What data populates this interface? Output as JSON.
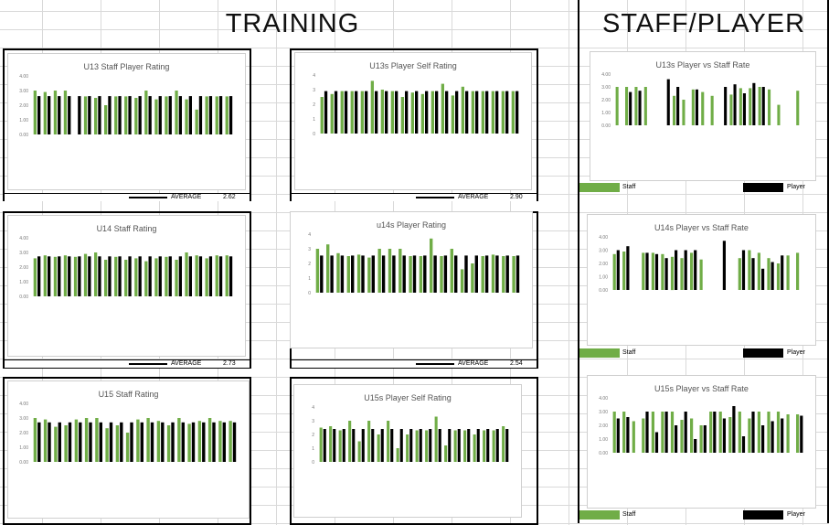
{
  "headings": {
    "training": "TRAINING",
    "staff_player": "STAFF/PLAYER"
  },
  "colors": {
    "green": "#70ad47",
    "black": "#000000"
  },
  "footers": [
    {
      "label": "AVERAGE",
      "value": "2.62"
    },
    {
      "label": "AVERAGE",
      "value": "2.90"
    },
    {
      "label": "AVERAGE",
      "value": "2.73"
    },
    {
      "label": "AVERAGE",
      "value": "2.54"
    }
  ],
  "legends": [
    {
      "staff": "Staff",
      "player": "Player"
    },
    {
      "staff": "Staff",
      "player": "Player"
    },
    {
      "staff": "Staff",
      "player": "Player"
    }
  ],
  "chart_data": [
    {
      "type": "bar",
      "title": "U13 Staff Player Rating",
      "ylim": [
        0,
        4
      ],
      "yticks": [
        "4.00",
        "3.00",
        "2.00",
        "1.00",
        "0.00"
      ],
      "series": [
        {
          "values": [
            3.0,
            2.9,
            3.0,
            3.0,
            0,
            2.6,
            2.5,
            2.0,
            2.6,
            2.6,
            2.5,
            3.0,
            2.4,
            2.6,
            3.0,
            2.4,
            1.7,
            2.6,
            2.6,
            2.6
          ]
        },
        {
          "values": [
            2.62,
            2.62,
            2.62,
            2.62,
            2.62,
            2.62,
            2.62,
            2.62,
            2.62,
            2.62,
            2.62,
            2.62,
            2.62,
            2.62,
            2.62,
            2.62,
            2.62,
            2.62,
            2.62,
            2.62
          ]
        }
      ]
    },
    {
      "type": "bar",
      "title": "U13s Player Self Rating",
      "ylim": [
        0,
        4
      ],
      "yticks": [
        "4",
        "3",
        "2",
        "1",
        "0"
      ],
      "series": [
        {
          "values": [
            2.5,
            2.7,
            2.9,
            2.9,
            2.9,
            3.6,
            3.0,
            2.9,
            2.5,
            2.8,
            2.7,
            2.9,
            3.4,
            2.6,
            3.2,
            2.9,
            2.9,
            2.9,
            2.9,
            2.9
          ]
        },
        {
          "values": [
            2.9,
            2.9,
            2.9,
            2.9,
            2.9,
            2.9,
            2.9,
            2.9,
            2.9,
            2.9,
            2.9,
            2.9,
            2.9,
            2.9,
            2.9,
            2.9,
            2.9,
            2.9,
            2.9,
            2.9
          ]
        }
      ]
    },
    {
      "type": "bar",
      "title": "U13s Player vs Staff Rate",
      "ylim": [
        0,
        4
      ],
      "yticks": [
        "4.00",
        "3.00",
        "2.00",
        "1.00",
        "0.00"
      ],
      "series": [
        {
          "values": [
            3.0,
            3.0,
            3.0,
            3.0,
            0,
            0,
            2.3,
            2.0,
            2.8,
            2.6,
            2.3,
            0,
            2.4,
            2.9,
            2.9,
            3.0,
            2.8,
            1.6,
            0,
            2.7
          ]
        },
        {
          "values": [
            0,
            2.6,
            2.7,
            0,
            0,
            3.6,
            3.0,
            0,
            2.8,
            0,
            0,
            3.0,
            3.2,
            2.5,
            3.3,
            3.0,
            0,
            0,
            0,
            0
          ]
        }
      ]
    },
    {
      "type": "bar",
      "title": "U14 Staff Rating",
      "ylim": [
        0,
        4
      ],
      "yticks": [
        "4.00",
        "3.00",
        "2.00",
        "1.00",
        "0.00"
      ],
      "series": [
        {
          "values": [
            2.6,
            2.8,
            2.7,
            2.8,
            2.7,
            2.9,
            3.0,
            2.5,
            2.7,
            2.5,
            2.6,
            2.4,
            2.6,
            2.7,
            2.5,
            3.0,
            2.8,
            2.6,
            2.8,
            2.8
          ]
        },
        {
          "values": [
            2.73,
            2.73,
            2.73,
            2.73,
            2.73,
            2.73,
            2.73,
            2.73,
            2.73,
            2.73,
            2.73,
            2.73,
            2.73,
            2.73,
            2.73,
            2.73,
            2.73,
            2.73,
            2.73,
            2.73
          ]
        }
      ]
    },
    {
      "type": "bar",
      "title": "u14s Player Rating",
      "ylim": [
        0,
        4
      ],
      "yticks": [
        "4",
        "3",
        "2",
        "1",
        "0"
      ],
      "series": [
        {
          "values": [
            3.0,
            3.3,
            2.7,
            2.5,
            2.6,
            2.4,
            3.0,
            3.0,
            3.0,
            2.5,
            2.5,
            3.7,
            2.5,
            3.0,
            1.6,
            2.0,
            2.5,
            2.6,
            2.5,
            2.5
          ]
        },
        {
          "values": [
            2.54,
            2.54,
            2.54,
            2.54,
            2.54,
            2.54,
            2.54,
            2.54,
            2.54,
            2.54,
            2.54,
            2.54,
            2.54,
            2.54,
            2.54,
            2.54,
            2.54,
            2.54,
            2.54,
            2.54
          ]
        }
      ]
    },
    {
      "type": "bar",
      "title": "U14s Player vs Staff Rate",
      "ylim": [
        0,
        4
      ],
      "yticks": [
        "4.00",
        "3.00",
        "2.00",
        "1.00",
        "0.00"
      ],
      "series": [
        {
          "values": [
            2.7,
            2.9,
            0,
            2.8,
            2.8,
            2.7,
            2.5,
            2.4,
            2.8,
            2.3,
            0,
            0,
            0,
            2.4,
            3.0,
            2.8,
            2.4,
            2.0,
            2.6,
            2.8
          ]
        },
        {
          "values": [
            3.0,
            3.3,
            0,
            2.8,
            2.7,
            2.4,
            3.0,
            3.0,
            3.0,
            0,
            0,
            3.7,
            0,
            3.0,
            2.4,
            1.6,
            2.1,
            2.6,
            0,
            0
          ]
        }
      ]
    },
    {
      "type": "bar",
      "title": "U15 Staff Rating",
      "ylim": [
        0,
        4
      ],
      "yticks": [
        "4.00",
        "3.00",
        "2.00",
        "1.00",
        "0.00"
      ],
      "series": [
        {
          "values": [
            3.0,
            2.9,
            2.4,
            2.5,
            2.9,
            3.0,
            3.0,
            2.3,
            2.5,
            2.0,
            2.9,
            3.0,
            2.8,
            2.5,
            3.0,
            2.6,
            2.8,
            3.0,
            2.8,
            2.8
          ]
        },
        {
          "values": [
            2.7,
            2.7,
            2.7,
            2.7,
            2.7,
            2.7,
            2.7,
            2.7,
            2.7,
            2.7,
            2.7,
            2.7,
            2.7,
            2.7,
            2.7,
            2.7,
            2.7,
            2.7,
            2.7,
            2.7
          ]
        }
      ]
    },
    {
      "type": "bar",
      "title": "U15s Player Self Rating",
      "ylim": [
        0,
        4
      ],
      "yticks": [
        "4",
        "3",
        "2",
        "1",
        "0"
      ],
      "series": [
        {
          "values": [
            2.5,
            2.6,
            2.3,
            3.0,
            1.5,
            3.0,
            2.0,
            3.0,
            1.0,
            2.0,
            2.3,
            2.3,
            3.3,
            1.2,
            2.3,
            2.3,
            2.0,
            2.3,
            2.3,
            2.6
          ]
        },
        {
          "values": [
            2.4,
            2.4,
            2.4,
            2.4,
            2.4,
            2.4,
            2.4,
            2.4,
            2.4,
            2.4,
            2.4,
            2.4,
            2.4,
            2.4,
            2.4,
            2.4,
            2.4,
            2.4,
            2.4,
            2.4
          ]
        }
      ]
    },
    {
      "type": "bar",
      "title": "U15s Player vs Staff Rate",
      "ylim": [
        0,
        4
      ],
      "yticks": [
        "4.00",
        "3.00",
        "2.00",
        "1.00",
        "0.00"
      ],
      "series": [
        {
          "values": [
            3.0,
            3.0,
            2.3,
            2.5,
            3.0,
            3.0,
            3.0,
            2.4,
            2.5,
            2.0,
            3.0,
            3.0,
            2.6,
            3.0,
            2.5,
            3.0,
            3.0,
            3.0,
            2.8,
            2.8
          ]
        },
        {
          "values": [
            2.5,
            2.6,
            0,
            3.0,
            1.5,
            3.0,
            2.0,
            3.0,
            1.0,
            2.0,
            3.0,
            2.5,
            3.4,
            1.2,
            3.0,
            2.0,
            2.3,
            2.5,
            0,
            2.7
          ]
        }
      ]
    }
  ]
}
